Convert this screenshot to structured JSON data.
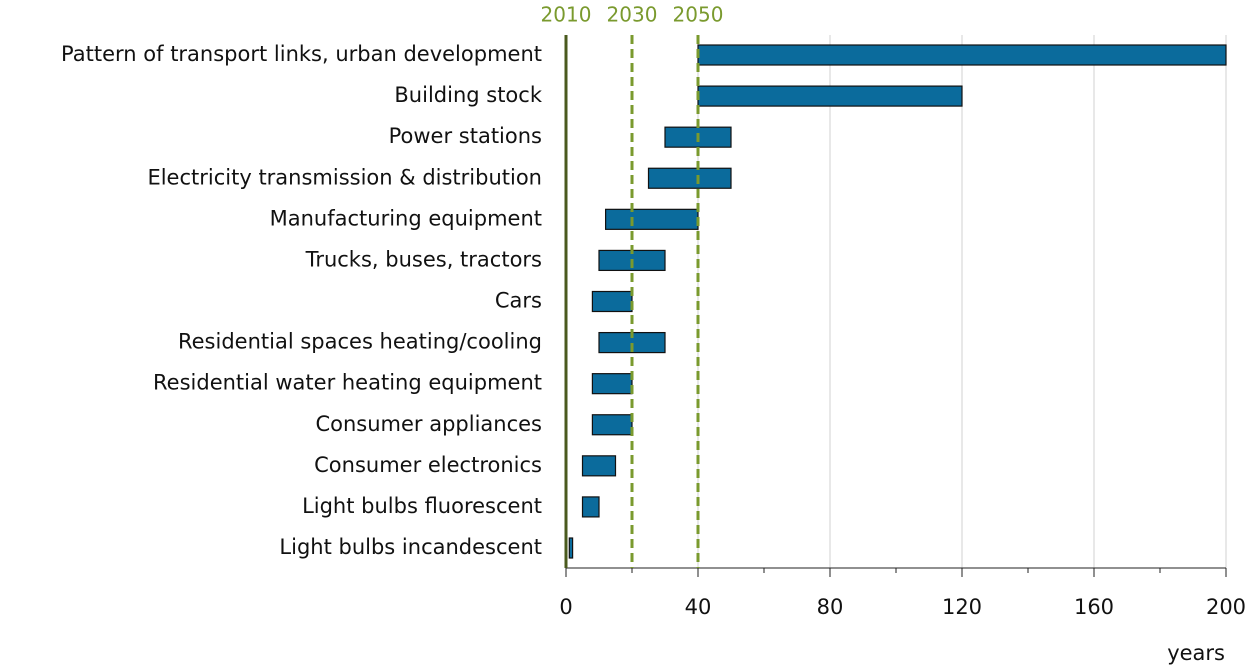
{
  "chart_data": {
    "type": "range_bar",
    "categories": [
      "Pattern of transport links, urban development",
      "Building stock",
      "Power stations",
      "Electricity transmission & distribution",
      "Manufacturing equipment",
      "Trucks, buses, tractors",
      "Cars",
      "Residential spaces heating/cooling",
      "Residential water heating equipment",
      "Consumer appliances",
      "Consumer electronics",
      "Light bulbs fluorescent",
      "Light bulbs incandescent"
    ],
    "starts": [
      40,
      40,
      30,
      25,
      12,
      10,
      8,
      10,
      8,
      8,
      5,
      5,
      1
    ],
    "ends": [
      200,
      120,
      50,
      50,
      40,
      30,
      20,
      30,
      20,
      20,
      15,
      10,
      2
    ],
    "color": "#0b6b9c",
    "xlabel": "years",
    "xlim": [
      0,
      200
    ],
    "xticks": [
      0,
      40,
      80,
      120,
      160,
      200
    ],
    "xminor": [
      20,
      60,
      100,
      140,
      180
    ],
    "grid": true,
    "reference_lines": [
      {
        "value": 0,
        "label": "2010",
        "style": "solid"
      },
      {
        "value": 20,
        "label": "2030",
        "style": "dashed"
      },
      {
        "value": 40,
        "label": "2050",
        "style": "dashed"
      }
    ],
    "reference_color": "#7a9a2e"
  }
}
